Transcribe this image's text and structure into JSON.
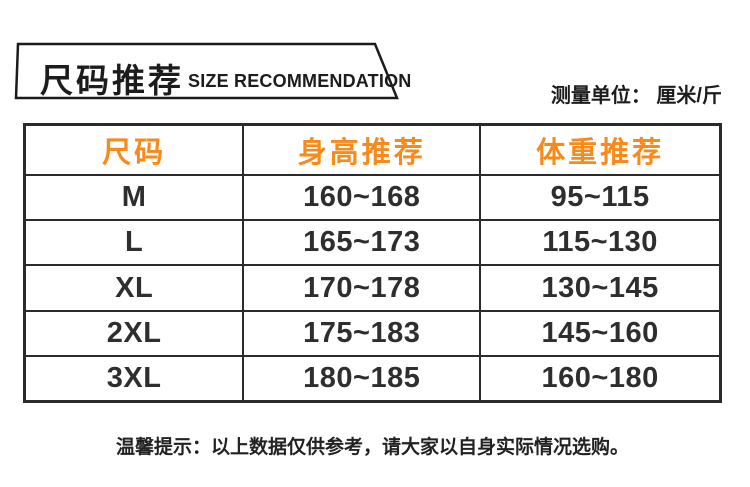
{
  "banner": {
    "title_cn": "尺码推荐",
    "title_en": "SIZE RECOMMENDATION"
  },
  "unit_note": "测量单位： 厘米/斤",
  "chart_data": {
    "type": "table",
    "title": "尺码推荐 SIZE RECOMMENDATION",
    "unit": "厘米/斤",
    "columns": [
      "尺码",
      "身高推荐",
      "体重推荐"
    ],
    "rows": [
      [
        "M",
        "160~168",
        "95~115"
      ],
      [
        "L",
        "165~173",
        "115~130"
      ],
      [
        "XL",
        "170~178",
        "130~145"
      ],
      [
        "2XL",
        "175~183",
        "145~160"
      ],
      [
        "3XL",
        "180~185",
        "160~180"
      ]
    ]
  },
  "footer": {
    "tip": "温馨提示：以上数据仅供参考，请大家以自身实际情况选购。"
  },
  "colors": {
    "accent_orange": "#f78a1a",
    "border_dark": "#2b2b2b",
    "text_dark": "#1c1c1c"
  }
}
